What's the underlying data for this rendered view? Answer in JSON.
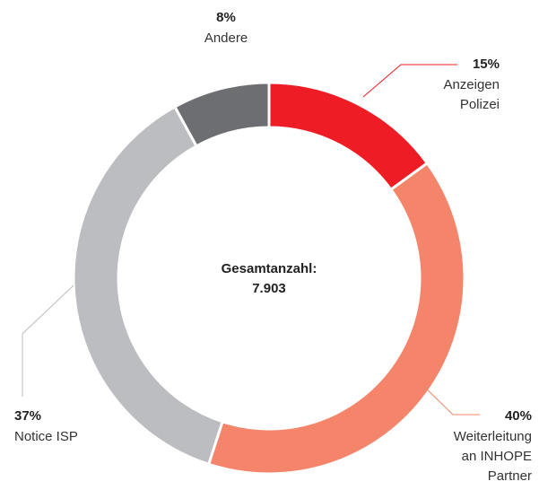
{
  "chart_data": {
    "type": "donut",
    "categories": [
      [
        "Anzeigen",
        "Polizei"
      ],
      [
        "Weiterleitung",
        "an INHOPE",
        "Partner"
      ],
      [
        "Notice ISP"
      ],
      [
        "Andere"
      ]
    ],
    "values": [
      15,
      40,
      37,
      8
    ],
    "value_labels": [
      "15%",
      "40%",
      "37%",
      "8%"
    ],
    "colors": [
      "#ee1c25",
      "#f4846a",
      "#bcbdc0",
      "#6d6e71"
    ],
    "center_title": "Gesamtanzahl:",
    "center_value": "7.903"
  }
}
